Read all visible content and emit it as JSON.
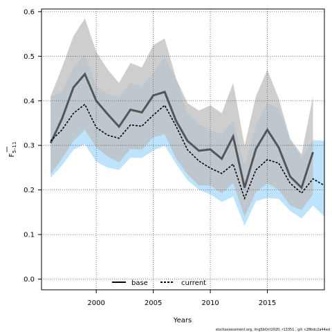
{
  "chart_data": {
    "type": "line",
    "xlabel": "Years",
    "ylabel_main": "F",
    "ylabel_sub": "5–11",
    "xlim": [
      1995.2,
      2020
    ],
    "ylim": [
      -0.024,
      0.606
    ],
    "xticks": [
      2000,
      2005,
      2010,
      2015
    ],
    "yticks": [
      0.0,
      0.1,
      0.2,
      0.3,
      0.4,
      0.5,
      0.6
    ],
    "ytick_labels": [
      "0.0",
      "0.1",
      "0.2",
      "0.3",
      "0.4",
      "0.5",
      "0.6"
    ],
    "grid": true,
    "legend_position": "bottom-center",
    "series": [
      {
        "name": "base",
        "color": "#555555",
        "band_color": "#bdbdbd",
        "x": [
          1996,
          1997,
          1998,
          1999,
          2000,
          2001,
          2002,
          2003,
          2004,
          2005,
          2006,
          2007,
          2008,
          2009,
          2010,
          2011,
          2012,
          2013,
          2014,
          2015,
          2016,
          2017,
          2018,
          2019
        ],
        "values": [
          0.305,
          0.36,
          0.43,
          0.46,
          0.4,
          0.37,
          0.342,
          0.38,
          0.374,
          0.412,
          0.42,
          0.355,
          0.31,
          0.288,
          0.291,
          0.27,
          0.32,
          0.205,
          0.292,
          0.335,
          0.295,
          0.23,
          0.205,
          0.285
        ],
        "upper": [
          0.41,
          0.475,
          0.545,
          0.585,
          0.51,
          0.47,
          0.44,
          0.485,
          0.475,
          0.525,
          0.54,
          0.45,
          0.395,
          0.378,
          0.39,
          0.372,
          0.44,
          0.3,
          0.41,
          0.47,
          0.405,
          0.315,
          0.28,
          0.41
        ],
        "lower": [
          0.235,
          0.27,
          0.31,
          0.335,
          0.295,
          0.275,
          0.262,
          0.292,
          0.29,
          0.318,
          0.325,
          0.27,
          0.235,
          0.21,
          0.21,
          0.192,
          0.215,
          0.14,
          0.195,
          0.215,
          0.2,
          0.165,
          0.155,
          0.19
        ]
      },
      {
        "name": "current",
        "color": "#000000",
        "band_color": "#87cefa",
        "x": [
          1996,
          1997,
          1998,
          1999,
          2000,
          2001,
          2002,
          2003,
          2004,
          2005,
          2006,
          2007,
          2008,
          2009,
          2010,
          2011,
          2012,
          2013,
          2014,
          2015,
          2016,
          2017,
          2018,
          2019,
          2020
        ],
        "values": [
          0.31,
          0.335,
          0.372,
          0.392,
          0.34,
          0.323,
          0.316,
          0.346,
          0.343,
          0.368,
          0.39,
          0.343,
          0.29,
          0.265,
          0.249,
          0.237,
          0.258,
          0.181,
          0.245,
          0.268,
          0.26,
          0.215,
          0.193,
          0.225,
          0.21
        ],
        "upper": [
          0.41,
          0.42,
          0.475,
          0.505,
          0.433,
          0.415,
          0.408,
          0.44,
          0.432,
          0.463,
          0.498,
          0.45,
          0.372,
          0.347,
          0.335,
          0.325,
          0.355,
          0.255,
          0.345,
          0.395,
          0.383,
          0.313,
          0.272,
          0.312,
          0.31
        ],
        "lower": [
          0.227,
          0.255,
          0.29,
          0.303,
          0.263,
          0.25,
          0.245,
          0.272,
          0.272,
          0.288,
          0.3,
          0.258,
          0.222,
          0.2,
          0.19,
          0.173,
          0.185,
          0.12,
          0.175,
          0.182,
          0.18,
          0.153,
          0.136,
          0.165,
          0.14
        ]
      }
    ],
    "footer": "stockassessment.org, lingSbOct2020, r13351 , git: c28bdc2a44ad"
  }
}
